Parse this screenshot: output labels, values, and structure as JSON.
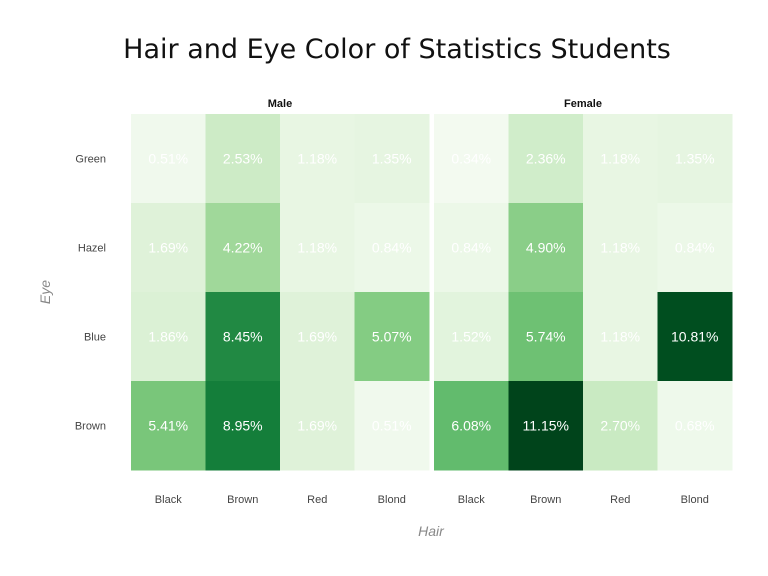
{
  "chart_data": {
    "type": "heatmap",
    "title": "Hair and Eye Color of Statistics Students",
    "xlabel": "Hair",
    "ylabel": "Eye",
    "hair": [
      "Black",
      "Brown",
      "Red",
      "Blond"
    ],
    "eye": [
      "Green",
      "Hazel",
      "Blue",
      "Brown"
    ],
    "max_value": 11.15,
    "color_low": "#f7fcf5",
    "color_high": "#00441b",
    "text_color": "#ffffff",
    "facets": [
      {
        "name": "Male",
        "values": [
          [
            0.51,
            2.53,
            1.18,
            1.35
          ],
          [
            1.69,
            4.22,
            1.18,
            0.84
          ],
          [
            1.86,
            8.45,
            1.69,
            5.07
          ],
          [
            5.41,
            8.95,
            1.69,
            0.51
          ]
        ],
        "labels": [
          [
            "0.51%",
            "2.53%",
            "1.18%",
            "1.35%"
          ],
          [
            "1.69%",
            "4.22%",
            "1.18%",
            "0.84%"
          ],
          [
            "1.86%",
            "8.45%",
            "1.69%",
            "5.07%"
          ],
          [
            "5.41%",
            "8.95%",
            "1.69%",
            "0.51%"
          ]
        ]
      },
      {
        "name": "Female",
        "values": [
          [
            0.34,
            2.36,
            1.18,
            1.35
          ],
          [
            0.84,
            4.9,
            1.18,
            0.84
          ],
          [
            1.52,
            5.74,
            1.18,
            10.81
          ],
          [
            6.08,
            11.15,
            2.7,
            0.68
          ]
        ],
        "labels": [
          [
            "0.34%",
            "2.36%",
            "1.18%",
            "1.35%"
          ],
          [
            "0.84%",
            "4.90%",
            "1.18%",
            "0.84%"
          ],
          [
            "1.52%",
            "5.74%",
            "1.18%",
            "10.81%"
          ],
          [
            "6.08%",
            "11.15%",
            "2.70%",
            "0.68%"
          ]
        ]
      }
    ]
  }
}
